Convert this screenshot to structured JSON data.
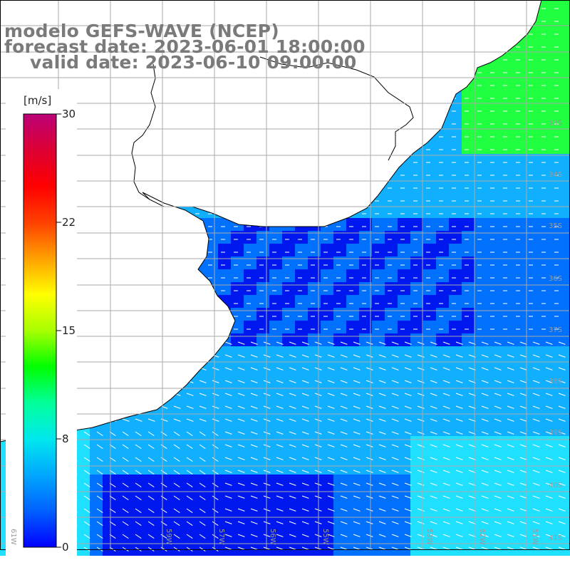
{
  "title": {
    "line1": "modelo GEFS-WAVE (NCEP)",
    "line2": "forecast date: 2023-06-01 18:00:00",
    "line3": "valid date: 2023-06-10 09:00:00"
  },
  "colorbar": {
    "unit": "[m/s]",
    "ticks": [
      "30",
      "22",
      "15",
      "8",
      "0"
    ],
    "colors": [
      "#0000ff",
      "#0060ff",
      "#00a8ff",
      "#00e8ee",
      "#00ff9a",
      "#00ff00",
      "#a8ff00",
      "#ffff00",
      "#ffa000",
      "#ff4000",
      "#ff0000",
      "#dd0033",
      "#bb0077"
    ]
  },
  "lat_labels": [
    "33S",
    "34S",
    "35S",
    "36S",
    "37S",
    "38S",
    "39S",
    "40S",
    "41S"
  ],
  "lon_labels": [
    "61W",
    "59W",
    "57W",
    "56W",
    "55W",
    "53W",
    "52W",
    "51W"
  ],
  "field_colors": {
    "coastal_blue": "#0018f0",
    "mid_blue": "#0070ff",
    "light_blue": "#10b0ff",
    "cyan": "#20e0ff",
    "green": "#20ff40"
  },
  "map_colors": {
    "land": "#ffffff",
    "coastline": "#000000",
    "grid": "#aaaaaa",
    "arrow": "#ffffff"
  }
}
